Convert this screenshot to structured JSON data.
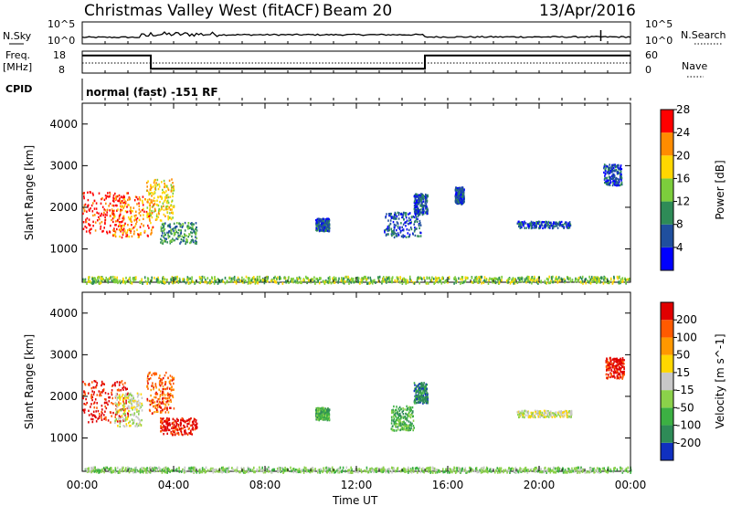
{
  "header": {
    "station": "Christmas Valley West (fitACF)",
    "beam": "Beam 20",
    "date": "13/Apr/2016"
  },
  "side_labels": {
    "nsky": "N.Sky",
    "nsky_top": "10^5",
    "nsky_bottom": "10^0",
    "nsearch": "N.Search",
    "nsearch_top": "10^5",
    "nsearch_bottom": "10^0",
    "freq_title": "Freq.",
    "freq_unit": "[MHz]",
    "freq_top": "18",
    "freq_bottom": "8",
    "nave": "Nave",
    "nave_top": "60",
    "nave_bottom": "0",
    "cpid": "CPID",
    "cpid_text": "normal (fast) -151 RF"
  },
  "chart_data": [
    {
      "type": "line",
      "title": "N.Sky / N.Search",
      "xlabel": "",
      "x": [
        "00:00",
        "04:00",
        "06:00",
        "12:00",
        "15:00",
        "22:00",
        "24:00"
      ],
      "series": [
        {
          "name": "N.Sky",
          "values": [
            0.6,
            0.9,
            0.9,
            1.0,
            1.1,
            0.6,
            0.7
          ]
        }
      ]
    },
    {
      "type": "line",
      "title": "Freq. / Nave",
      "x": [
        "00:00",
        "03:00",
        "03:00",
        "15:00",
        "15:00",
        "24:00"
      ],
      "series": [
        {
          "name": "Freq. [MHz]",
          "values": [
            16,
            16,
            10,
            10,
            16,
            16
          ]
        },
        {
          "name": "Nave",
          "values": [
            30,
            30,
            30,
            30,
            30,
            30
          ]
        }
      ]
    },
    {
      "type": "heatmap",
      "title": "Power",
      "ylabel": "Slant Range [km]",
      "xlabel": "Time UT",
      "xticks": [
        "00:00",
        "04:00",
        "08:00",
        "12:00",
        "16:00",
        "20:00",
        "00:00"
      ],
      "yticks": [
        "1000",
        "2000",
        "3000",
        "4000"
      ],
      "ylim": [
        200,
        4500
      ],
      "colorbar_label": "Power [dB]",
      "colorbar_ticks": [
        "4",
        "8",
        "12",
        "16",
        "20",
        "24",
        "28"
      ],
      "colors": [
        "#0000ff",
        "#1f4f9e",
        "#2e8b57",
        "#7ccd3c",
        "#ffd700",
        "#ff8c00",
        "#ff0000"
      ],
      "clusters": [
        {
          "t": 1.0,
          "r": 1900,
          "dt": 1.0,
          "dr": 500,
          "level": 6
        },
        {
          "t": 2.2,
          "r": 1800,
          "dt": 0.9,
          "dr": 500,
          "level": 5
        },
        {
          "t": 3.4,
          "r": 2200,
          "dt": 0.6,
          "dr": 500,
          "level": 4
        },
        {
          "t": 4.2,
          "r": 1400,
          "dt": 0.8,
          "dr": 250,
          "level": 2
        },
        {
          "t": 10.5,
          "r": 1600,
          "dt": 0.3,
          "dr": 150,
          "level": 1
        },
        {
          "t": 14.0,
          "r": 1600,
          "dt": 0.8,
          "dr": 300,
          "level": 1
        },
        {
          "t": 14.8,
          "r": 2100,
          "dt": 0.3,
          "dr": 250,
          "level": 1
        },
        {
          "t": 16.5,
          "r": 2300,
          "dt": 0.2,
          "dr": 200,
          "level": 1
        },
        {
          "t": 20.2,
          "r": 1600,
          "dt": 1.2,
          "dr": 80,
          "level": 1
        },
        {
          "t": 23.2,
          "r": 2800,
          "dt": 0.4,
          "dr": 250,
          "level": 1
        },
        {
          "t": 12.0,
          "r": 280,
          "dt": 12.0,
          "dr": 80,
          "level": 3
        }
      ]
    },
    {
      "type": "heatmap",
      "title": "Velocity",
      "ylabel": "Slant Range [km]",
      "xlabel": "Time UT",
      "xticks": [
        "00:00",
        "04:00",
        "08:00",
        "12:00",
        "16:00",
        "20:00",
        "00:00"
      ],
      "yticks": [
        "1000",
        "2000",
        "3000",
        "4000"
      ],
      "ylim": [
        200,
        4500
      ],
      "colorbar_label": "Velocity [m s^-1]",
      "colorbar_ticks": [
        "200",
        "100",
        "50",
        "15",
        "-15",
        "-50",
        "-100",
        "-200"
      ],
      "colors": [
        "#1030c0",
        "#2e8b57",
        "#3cb043",
        "#8bd14a",
        "#c8c8c8",
        "#ffd700",
        "#ff9800",
        "#ff5a00",
        "#e00000"
      ],
      "clusters": [
        {
          "t": 1.0,
          "r": 1900,
          "dt": 1.0,
          "dr": 500,
          "level": 8
        },
        {
          "t": 2.0,
          "r": 1700,
          "dt": 0.6,
          "dr": 400,
          "level": 4
        },
        {
          "t": 3.4,
          "r": 2100,
          "dt": 0.6,
          "dr": 500,
          "level": 7
        },
        {
          "t": 4.2,
          "r": 1300,
          "dt": 0.8,
          "dr": 200,
          "level": 8
        },
        {
          "t": 10.5,
          "r": 1600,
          "dt": 0.3,
          "dr": 150,
          "level": 2
        },
        {
          "t": 14.0,
          "r": 1500,
          "dt": 0.5,
          "dr": 300,
          "level": 2
        },
        {
          "t": 14.8,
          "r": 2100,
          "dt": 0.3,
          "dr": 250,
          "level": 1
        },
        {
          "t": 20.2,
          "r": 1600,
          "dt": 1.2,
          "dr": 80,
          "level": 4
        },
        {
          "t": 23.3,
          "r": 2700,
          "dt": 0.4,
          "dr": 250,
          "level": 8
        },
        {
          "t": 12.0,
          "r": 260,
          "dt": 12.0,
          "dr": 60,
          "level": 3
        }
      ]
    }
  ]
}
